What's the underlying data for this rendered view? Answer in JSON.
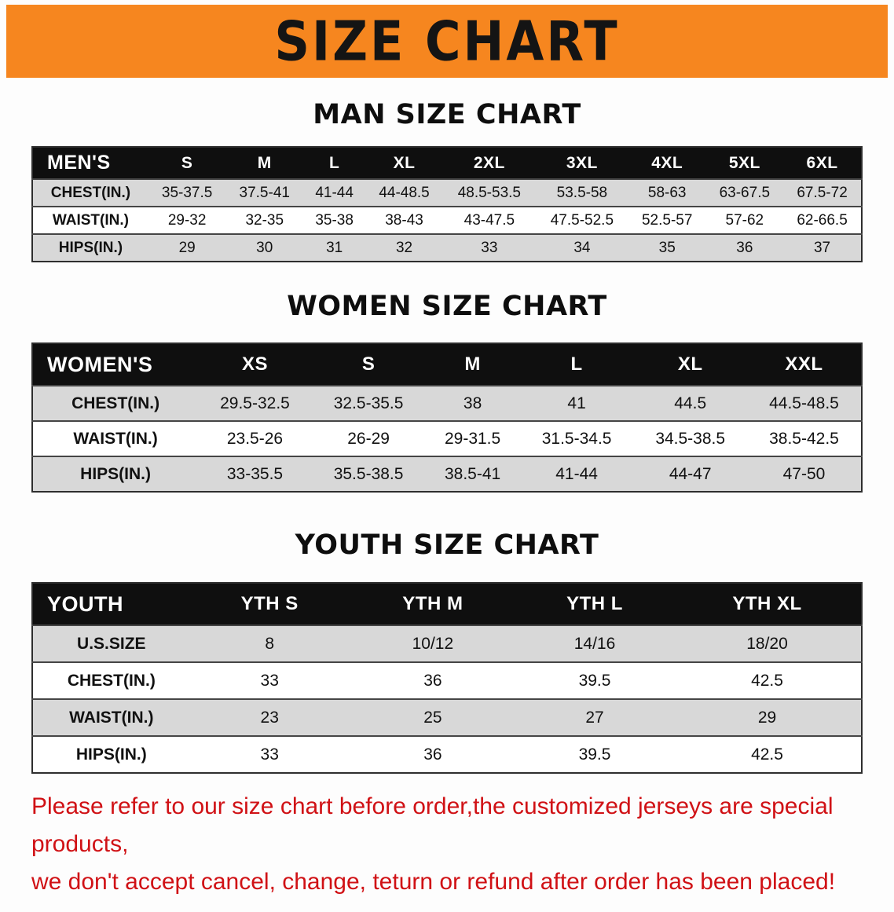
{
  "banner": {
    "title": "SIZE CHART",
    "bg_color": "#F6861F",
    "text_color": "#141414"
  },
  "tables": [
    {
      "heading": "MAN SIZE CHART",
      "header": [
        "MEN'S",
        "S",
        "M",
        "L",
        "XL",
        "2XL",
        "3XL",
        "4XL",
        "5XL",
        "6XL"
      ],
      "rows": [
        [
          "CHEST(IN.)",
          "35-37.5",
          "37.5-41",
          "41-44",
          "44-48.5",
          "48.5-53.5",
          "53.5-58",
          "58-63",
          "63-67.5",
          "67.5-72"
        ],
        [
          "WAIST(IN.)",
          "29-32",
          "32-35",
          "35-38",
          "38-43",
          "43-47.5",
          "47.5-52.5",
          "52.5-57",
          "57-62",
          "62-66.5"
        ],
        [
          "HIPS(IN.)",
          "29",
          "30",
          "31",
          "32",
          "33",
          "34",
          "35",
          "36",
          "37"
        ]
      ]
    },
    {
      "heading": "WOMEN SIZE CHART",
      "header": [
        "WOMEN'S",
        "XS",
        "S",
        "M",
        "L",
        "XL",
        "XXL"
      ],
      "rows": [
        [
          "CHEST(IN.)",
          "29.5-32.5",
          "32.5-35.5",
          "38",
          "41",
          "44.5",
          "44.5-48.5"
        ],
        [
          "WAIST(IN.)",
          "23.5-26",
          "26-29",
          "29-31.5",
          "31.5-34.5",
          "34.5-38.5",
          "38.5-42.5"
        ],
        [
          "HIPS(IN.)",
          "33-35.5",
          "35.5-38.5",
          "38.5-41",
          "41-44",
          "44-47",
          "47-50"
        ]
      ]
    },
    {
      "heading": "YOUTH SIZE CHART",
      "header": [
        "YOUTH",
        "YTH S",
        "YTH M",
        "YTH L",
        "YTH XL"
      ],
      "rows": [
        [
          "U.S.SIZE",
          "8",
          "10/12",
          "14/16",
          "18/20"
        ],
        [
          "CHEST(IN.)",
          "33",
          "36",
          "39.5",
          "42.5"
        ],
        [
          "WAIST(IN.)",
          "23",
          "25",
          "27",
          "29"
        ],
        [
          "HIPS(IN.)",
          "33",
          "36",
          "39.5",
          "42.5"
        ]
      ]
    }
  ],
  "disclaimer": {
    "line1": "Please refer to our size chart before order,the customized jerseys are special products,",
    "line2": "we don't accept cancel, change, teturn or refund after order has been placed!",
    "color": "#d01115"
  },
  "colors": {
    "header_row_bg": "#0f0f0f",
    "header_row_text": "#ffffff",
    "stripe_row_bg": "#d8d8d8"
  }
}
